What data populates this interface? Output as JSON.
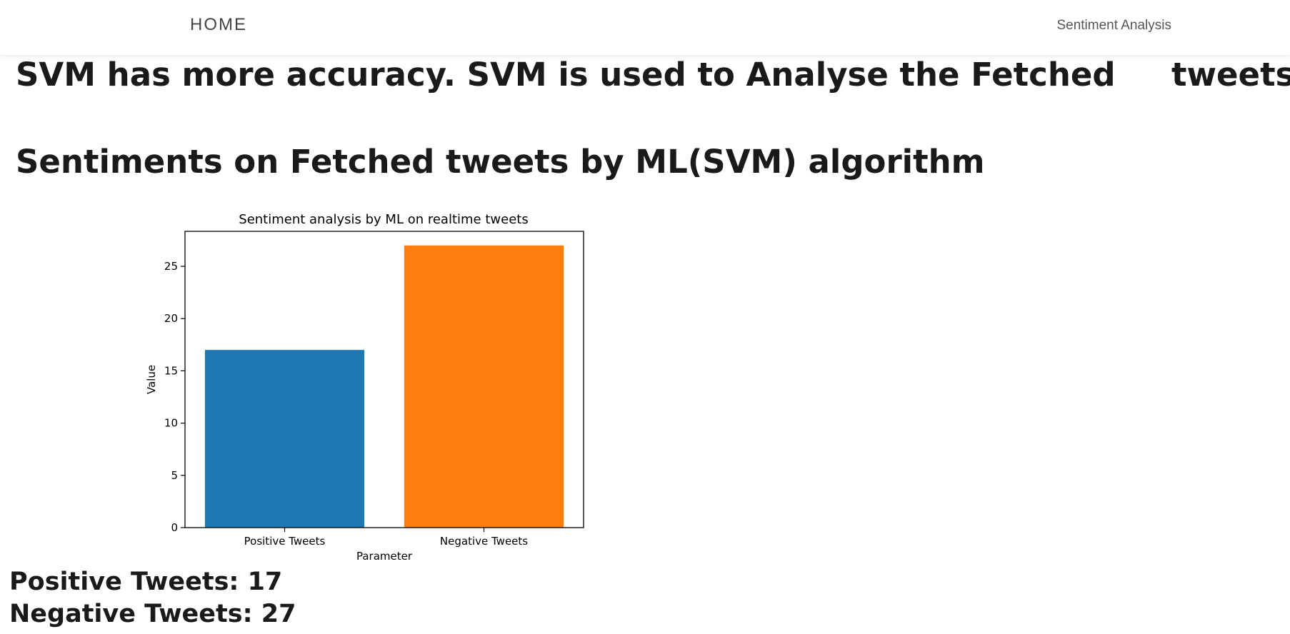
{
  "navbar": {
    "home_label": "HOME",
    "right_label": "Sentiment Analysis"
  },
  "headings": {
    "line1": "SVM has more accuracy. SVM is used to Analyse the Fetched     tweets",
    "line2": "Sentiments on Fetched tweets by ML(SVM) algorithm"
  },
  "chart_data": {
    "type": "bar",
    "title": "Sentiment analysis by ML on realtime tweets",
    "xlabel": "Parameter",
    "ylabel": "Value",
    "categories": [
      "Positive Tweets",
      "Negative Tweets"
    ],
    "values": [
      17,
      27
    ],
    "colors": [
      "#1f77b4",
      "#ff7f0e"
    ],
    "ylim": [
      0,
      28.35
    ],
    "yticks": [
      0,
      5,
      10,
      15,
      20,
      25
    ],
    "grid": false
  },
  "counts": {
    "positive": "Positive Tweets: 17",
    "negative": "Negative Tweets: 27"
  }
}
